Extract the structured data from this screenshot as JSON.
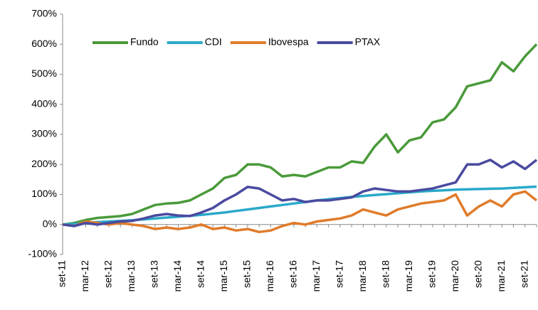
{
  "chart_data": {
    "type": "line",
    "categories": [
      "set-11",
      null,
      "mar-12",
      null,
      "set-12",
      null,
      "mar-13",
      null,
      "set-13",
      null,
      "mar-14",
      null,
      "set-14",
      null,
      "mar-15",
      null,
      "set-15",
      null,
      "mar-16",
      null,
      "set-16",
      null,
      "mar-17",
      null,
      "set-17",
      null,
      "mar-18",
      null,
      "set-18",
      null,
      "mar-19",
      null,
      "set-19",
      null,
      "mar-20",
      null,
      "set-20",
      null,
      "mar-21",
      null,
      "set-21",
      null
    ],
    "series": [
      {
        "name": "Fundo",
        "color": "#4a9a3a",
        "values": [
          0,
          5,
          15,
          22,
          25,
          28,
          35,
          50,
          65,
          70,
          72,
          80,
          100,
          120,
          155,
          165,
          200,
          200,
          190,
          160,
          165,
          160,
          175,
          190,
          190,
          210,
          205,
          260,
          300,
          240,
          280,
          290,
          340,
          350,
          390,
          460,
          470,
          480,
          540,
          510,
          560,
          600
        ]
      },
      {
        "name": "CDI",
        "color": "#2aa9c9",
        "values": [
          0,
          2,
          5,
          8,
          10,
          12,
          14,
          17,
          20,
          23,
          26,
          29,
          32,
          36,
          40,
          45,
          50,
          55,
          60,
          65,
          70,
          75,
          80,
          84,
          88,
          92,
          95,
          98,
          101,
          104,
          107,
          110,
          112,
          114,
          116,
          117,
          118,
          119,
          120,
          122,
          124,
          126
        ]
      },
      {
        "name": "Ibovespa",
        "color": "#e07b2a",
        "values": [
          0,
          -5,
          10,
          5,
          0,
          5,
          0,
          -5,
          -15,
          -10,
          -15,
          -10,
          0,
          -15,
          -10,
          -20,
          -15,
          -25,
          -20,
          -5,
          5,
          0,
          10,
          15,
          20,
          30,
          50,
          40,
          30,
          50,
          60,
          70,
          75,
          80,
          100,
          30,
          60,
          80,
          60,
          100,
          110,
          80
        ]
      },
      {
        "name": "PTAX",
        "color": "#4a4aa0",
        "values": [
          0,
          -5,
          5,
          0,
          5,
          10,
          12,
          20,
          30,
          35,
          30,
          28,
          40,
          55,
          80,
          100,
          125,
          120,
          100,
          80,
          85,
          75,
          80,
          80,
          85,
          90,
          110,
          120,
          115,
          110,
          110,
          115,
          120,
          130,
          140,
          200,
          200,
          215,
          190,
          210,
          185,
          215
        ]
      }
    ],
    "ylim": [
      -100,
      700
    ],
    "yticks": [
      {
        "value": -100,
        "label": "-100%"
      },
      {
        "value": 0,
        "label": "0%"
      },
      {
        "value": 100,
        "label": "100%"
      },
      {
        "value": 200,
        "label": "200%"
      },
      {
        "value": 300,
        "label": "300%"
      },
      {
        "value": 400,
        "label": "400%"
      },
      {
        "value": 500,
        "label": "500%"
      },
      {
        "value": 600,
        "label": "600%"
      },
      {
        "value": 700,
        "label": "700%"
      }
    ],
    "grid": false,
    "legend": "top"
  }
}
